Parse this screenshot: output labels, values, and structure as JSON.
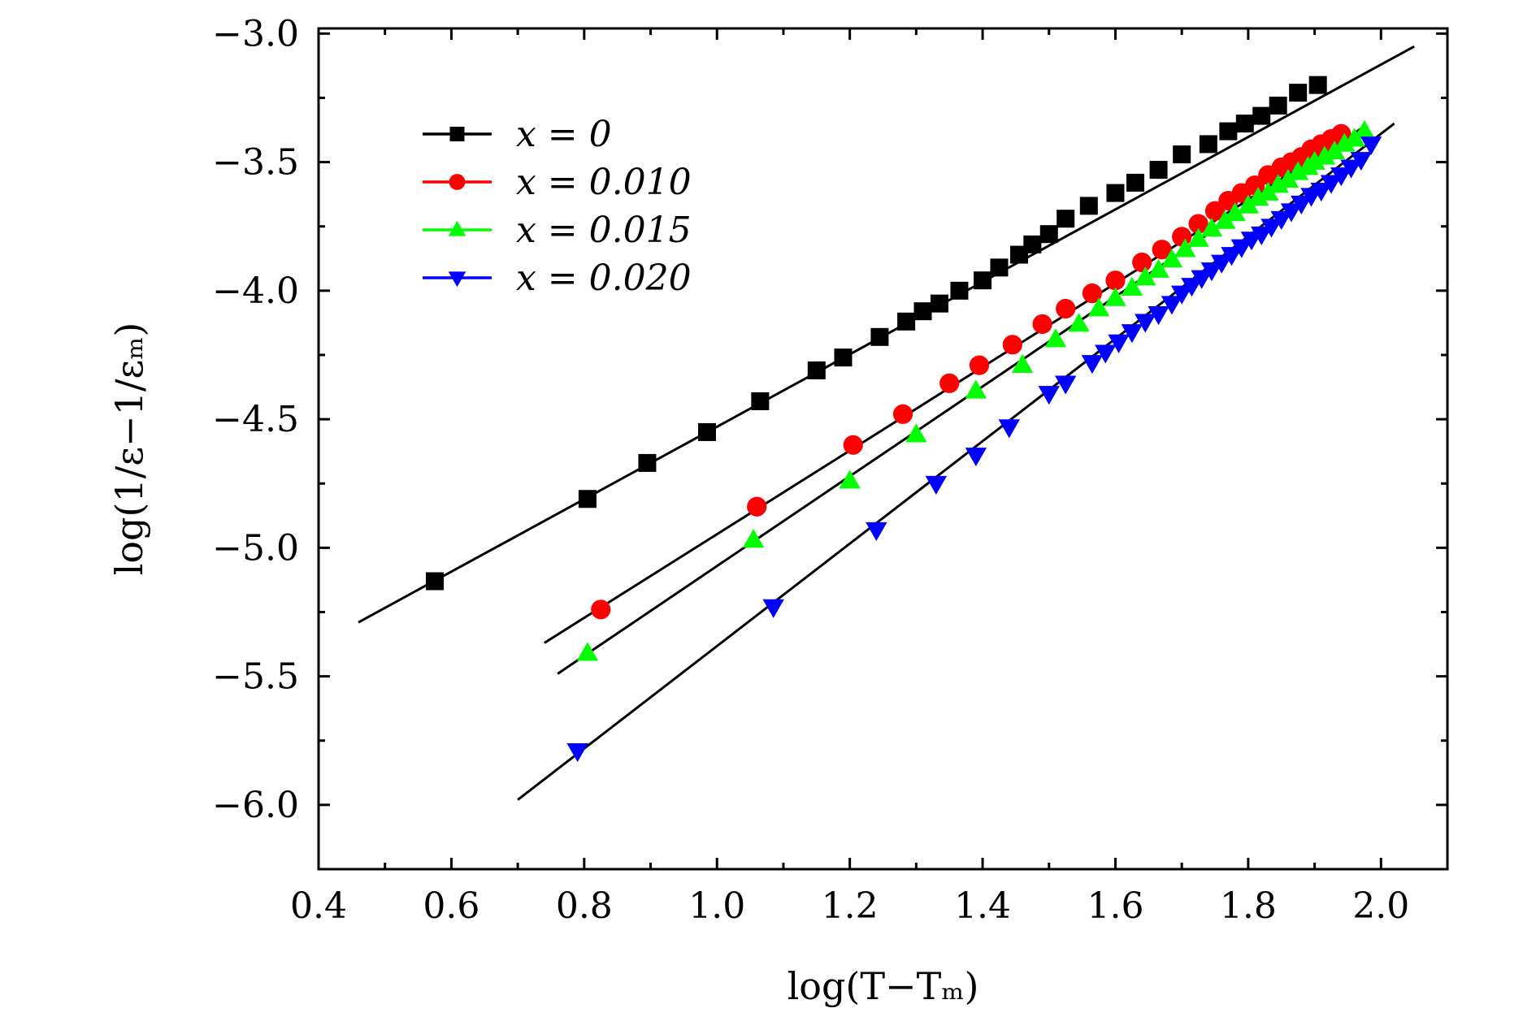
{
  "chart_data": {
    "type": "scatter",
    "xlabel": "log(T−Tₘ)",
    "ylabel": "log(1/ε−1/εₘ)",
    "xlim": [
      0.4,
      2.1
    ],
    "ylim": [
      -6.25,
      -2.98
    ],
    "x_ticks": [
      0.4,
      0.6,
      0.8,
      1.0,
      1.2,
      1.4,
      1.6,
      1.8,
      2.0
    ],
    "x_tick_labels": [
      "0.4",
      "0.6",
      "0.8",
      "1.0",
      "1.2",
      "1.4",
      "1.6",
      "1.8",
      "2.0"
    ],
    "y_ticks": [
      -6.0,
      -5.5,
      -5.0,
      -4.5,
      -4.0,
      -3.5,
      -3.0
    ],
    "y_tick_labels": [
      "−6.0",
      "−5.5",
      "−5.0",
      "−4.5",
      "−4.0",
      "−3.5",
      "−3.0"
    ],
    "legend_position": "top-left",
    "grid": false,
    "series": [
      {
        "name": "x = 0",
        "color": "#000000",
        "marker": "square",
        "x": [
          0.575,
          0.805,
          0.895,
          0.985,
          1.065,
          1.15,
          1.19,
          1.245,
          1.285,
          1.31,
          1.335,
          1.365,
          1.4,
          1.425,
          1.455,
          1.475,
          1.5,
          1.525,
          1.56,
          1.6,
          1.63,
          1.665,
          1.7,
          1.74,
          1.77,
          1.795,
          1.82,
          1.845,
          1.875,
          1.905
        ],
        "y": [
          -5.13,
          -4.81,
          -4.67,
          -4.55,
          -4.43,
          -4.31,
          -4.26,
          -4.18,
          -4.12,
          -4.08,
          -4.05,
          -4.0,
          -3.96,
          -3.91,
          -3.86,
          -3.82,
          -3.78,
          -3.72,
          -3.67,
          -3.62,
          -3.58,
          -3.53,
          -3.47,
          -3.43,
          -3.38,
          -3.35,
          -3.32,
          -3.28,
          -3.23,
          -3.2
        ],
        "fit_x": [
          0.46,
          2.05
        ],
        "fit_y": [
          -5.29,
          -3.05
        ]
      },
      {
        "name": "x = 0.010",
        "color": "#ff0000",
        "marker": "circle",
        "x": [
          0.825,
          1.06,
          1.205,
          1.28,
          1.35,
          1.395,
          1.445,
          1.49,
          1.525,
          1.565,
          1.6,
          1.64,
          1.67,
          1.7,
          1.725,
          1.75,
          1.77,
          1.79,
          1.81,
          1.83,
          1.85,
          1.865,
          1.88,
          1.895,
          1.91,
          1.925,
          1.94
        ],
        "y": [
          -5.24,
          -4.84,
          -4.6,
          -4.48,
          -4.36,
          -4.29,
          -4.21,
          -4.13,
          -4.07,
          -4.01,
          -3.96,
          -3.89,
          -3.84,
          -3.79,
          -3.74,
          -3.69,
          -3.65,
          -3.62,
          -3.59,
          -3.55,
          -3.52,
          -3.5,
          -3.48,
          -3.45,
          -3.43,
          -3.41,
          -3.39
        ],
        "fit_x": [
          0.74,
          1.97
        ],
        "fit_y": [
          -5.37,
          -3.37
        ]
      },
      {
        "name": "x = 0.015",
        "color": "#00ff00",
        "marker": "triangle-up",
        "x": [
          0.805,
          1.055,
          1.2,
          1.3,
          1.39,
          1.46,
          1.51,
          1.545,
          1.575,
          1.6,
          1.625,
          1.645,
          1.665,
          1.685,
          1.705,
          1.725,
          1.745,
          1.765,
          1.78,
          1.8,
          1.815,
          1.83,
          1.845,
          1.86,
          1.875,
          1.89,
          1.9,
          1.915,
          1.93,
          1.945,
          1.96,
          1.975
        ],
        "y": [
          -5.41,
          -4.97,
          -4.74,
          -4.56,
          -4.39,
          -4.29,
          -4.19,
          -4.13,
          -4.07,
          -4.03,
          -3.99,
          -3.95,
          -3.92,
          -3.88,
          -3.84,
          -3.8,
          -3.76,
          -3.73,
          -3.7,
          -3.67,
          -3.64,
          -3.62,
          -3.59,
          -3.57,
          -3.54,
          -3.52,
          -3.5,
          -3.48,
          -3.46,
          -3.43,
          -3.41,
          -3.38
        ],
        "fit_x": [
          0.76,
          1.98
        ],
        "fit_y": [
          -5.49,
          -3.36
        ]
      },
      {
        "name": "x = 0.020",
        "color": "#0000ff",
        "marker": "triangle-down",
        "x": [
          0.79,
          1.085,
          1.24,
          1.33,
          1.39,
          1.44,
          1.5,
          1.525,
          1.565,
          1.585,
          1.605,
          1.625,
          1.645,
          1.665,
          1.685,
          1.7,
          1.715,
          1.73,
          1.745,
          1.76,
          1.775,
          1.79,
          1.805,
          1.82,
          1.835,
          1.85,
          1.865,
          1.88,
          1.895,
          1.91,
          1.925,
          1.94,
          1.955,
          1.97,
          1.985
        ],
        "y": [
          -5.79,
          -5.23,
          -4.93,
          -4.75,
          -4.64,
          -4.53,
          -4.4,
          -4.36,
          -4.28,
          -4.24,
          -4.2,
          -4.16,
          -4.12,
          -4.09,
          -4.05,
          -4.01,
          -3.98,
          -3.95,
          -3.92,
          -3.89,
          -3.86,
          -3.83,
          -3.8,
          -3.78,
          -3.75,
          -3.72,
          -3.69,
          -3.66,
          -3.63,
          -3.61,
          -3.58,
          -3.55,
          -3.52,
          -3.49,
          -3.43
        ],
        "fit_x": [
          0.7,
          2.02
        ],
        "fit_y": [
          -5.98,
          -3.35
        ]
      }
    ]
  }
}
